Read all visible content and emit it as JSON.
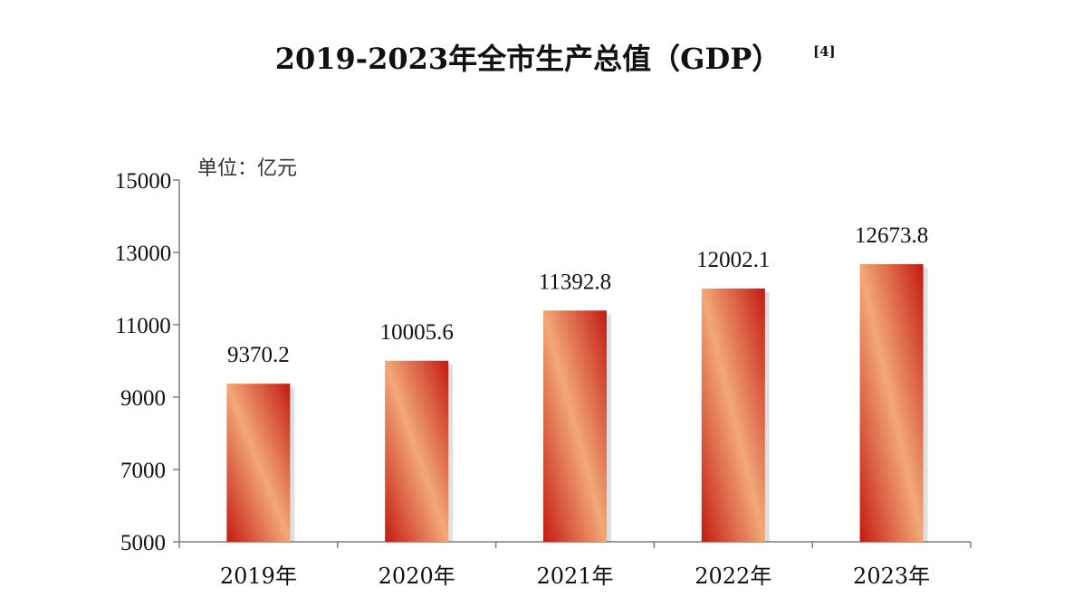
{
  "chart_data": {
    "type": "bar",
    "title": "2019-2023年全市生产总值（GDP）",
    "title_ref": "[4]",
    "unit_label": "单位：亿元",
    "categories": [
      "2019年",
      "2020年",
      "2021年",
      "2022年",
      "2023年"
    ],
    "values": [
      9370.2,
      10005.6,
      11392.8,
      12002.1,
      12673.8
    ],
    "value_labels": [
      "9370.2",
      "10005.6",
      "11392.8",
      "12002.1",
      "12673.8"
    ],
    "ylim": [
      5000,
      15000
    ],
    "yticks": [
      5000,
      7000,
      9000,
      11000,
      13000,
      15000
    ],
    "grid": false,
    "legend": "none",
    "bar_color_dark": "#c41a12",
    "bar_color_light": "#f2a878"
  }
}
